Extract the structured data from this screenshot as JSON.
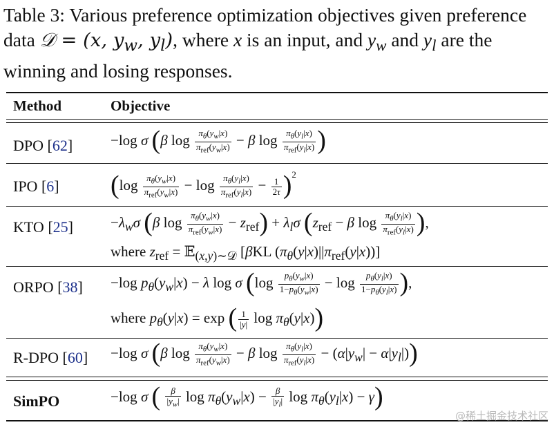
{
  "caption": {
    "lead": "Table 3: Various preference optimization objectives given preference data ",
    "dataset": "𝒟 = (x, y_w, y_l)",
    "mid": ", where x is an input, and y_w and y_l are the winning and losing responses."
  },
  "table": {
    "headers": [
      "Method",
      "Objective"
    ],
    "rows": [
      {
        "method": "DPO",
        "ref": "62",
        "objective": "−log σ (β log πθ(yw|x)/πref(yw|x) − β log πθ(yl|x)/πref(yl|x))"
      },
      {
        "method": "IPO",
        "ref": "6",
        "objective": "(log πθ(yw|x)/πref(yw|x) − log πθ(yl|x)/πref(yl|x) − 1/(2τ))²"
      },
      {
        "method": "KTO",
        "ref": "25",
        "objective": "−λw σ (β log πθ(yw|x)/πref(yw|x) − zref) + λl σ (zref − β log πθ(yl|x)/πref(yl|x)),",
        "objective_line2": "where zref = 𝔼(x,y)∼𝒟 [βKL (πθ(y|x)||πref(y|x))]"
      },
      {
        "method": "ORPO",
        "ref": "38",
        "objective": "−log pθ(yw|x) − λ log σ (log pθ(yw|x)/(1−pθ(yw|x)) − log pθ(yl|x)/(1−pθ(yl|x))),",
        "objective_line2": "where pθ(y|x) = exp ((1/|y|) log πθ(y|x))"
      },
      {
        "method": "R-DPO",
        "ref": "60",
        "objective": "−log σ (β log πθ(yw|x)/πref(yw|x) − β log πθ(yl|x)/πref(yl|x) − (α|yw| − α|yl|))"
      },
      {
        "method": "SimPO",
        "ref": "",
        "objective": "−log σ (β/|yw| log πθ(yw|x) − β/|yl| log πθ(yl|x) − γ)"
      }
    ]
  },
  "watermark": "@稀土掘金技术社区"
}
